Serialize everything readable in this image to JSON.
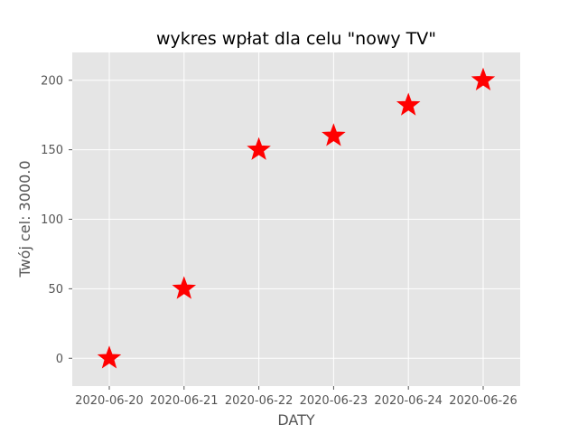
{
  "chart_data": {
    "type": "scatter",
    "title": "wykres wpłat dla celu \"nowy TV\"",
    "xlabel": "DATY",
    "ylabel": "Twój cel: 3000.0",
    "x": [
      "2020-06-20",
      "2020-06-21",
      "2020-06-22",
      "2020-06-23",
      "2020-06-24",
      "2020-06-26"
    ],
    "y": [
      0,
      50,
      150,
      160,
      182,
      200
    ],
    "yticks": [
      0,
      50,
      100,
      150,
      200
    ],
    "ylim": [
      -20,
      220
    ],
    "grid": true,
    "marker": "star",
    "marker_color": "#ff0000",
    "plot_background": "#e5e5e5"
  }
}
